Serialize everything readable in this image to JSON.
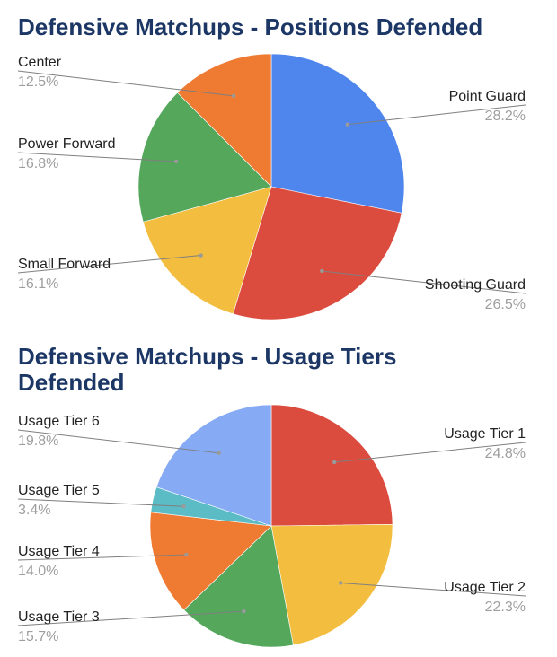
{
  "chart_data": [
    {
      "type": "pie",
      "title": "Defensive Matchups - Positions Defended",
      "start_category": "Point Guard",
      "direction": "clockwise",
      "slices": [
        {
          "label": "Point Guard",
          "value": 28.2,
          "display": "28.2%",
          "color": "#4e86ee",
          "side": "right"
        },
        {
          "label": "Shooting Guard",
          "value": 26.5,
          "display": "26.5%",
          "color": "#db4c3f",
          "side": "right"
        },
        {
          "label": "Small Forward",
          "value": 16.1,
          "display": "16.1%",
          "color": "#f3be3f",
          "side": "left"
        },
        {
          "label": "Power Forward",
          "value": 16.8,
          "display": "16.8%",
          "color": "#55a75c",
          "side": "left"
        },
        {
          "label": "Center",
          "value": 12.5,
          "display": "12.5%",
          "color": "#ef7a32",
          "side": "left"
        }
      ],
      "legend": "inline labels with leader lines"
    },
    {
      "type": "pie",
      "title": "Defensive Matchups - Usage Tiers Defended",
      "start_category": "Usage Tier 1",
      "direction": "clockwise",
      "slices": [
        {
          "label": "Usage Tier 1",
          "value": 24.8,
          "display": "24.8%",
          "color": "#db4c3f",
          "side": "right"
        },
        {
          "label": "Usage Tier 2",
          "value": 22.3,
          "display": "22.3%",
          "color": "#f3be3f",
          "side": "right"
        },
        {
          "label": "Usage Tier 3",
          "value": 15.7,
          "display": "15.7%",
          "color": "#55a75c",
          "side": "left"
        },
        {
          "label": "Usage Tier 4",
          "value": 14.0,
          "display": "14.0%",
          "color": "#ef7a32",
          "side": "left"
        },
        {
          "label": "Usage Tier 5",
          "value": 3.4,
          "display": "3.4%",
          "color": "#5bbcc6",
          "side": "left"
        },
        {
          "label": "Usage Tier 6",
          "value": 19.8,
          "display": "19.8%",
          "color": "#86aaf3",
          "side": "left"
        }
      ],
      "legend": "inline labels with leader lines"
    }
  ]
}
